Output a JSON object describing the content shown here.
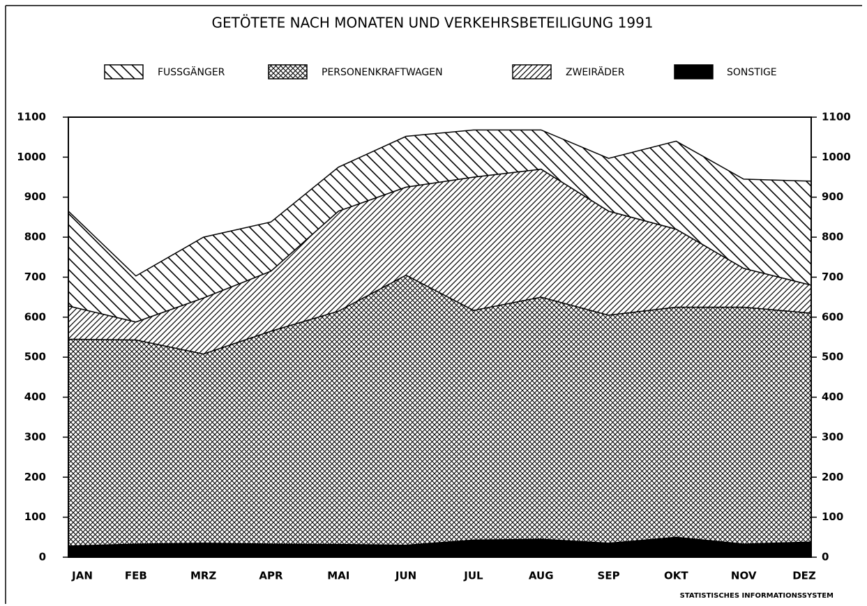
{
  "chart_data": {
    "type": "stacked-area",
    "title": "GETÖTETE NACH MONATEN UND VERKEHRSBETEILIGUNG 1991",
    "footer": "STATISTISCHES INFORMATIONSSYSTEM",
    "categories": [
      "JAN",
      "FEB",
      "MRZ",
      "APR",
      "MAI",
      "JUN",
      "JUL",
      "AUG",
      "SEP",
      "OKT",
      "NOV",
      "DEZ"
    ],
    "series": [
      {
        "name": "SONSTIGE",
        "color": "#000000",
        "values": [
          28,
          33,
          35,
          33,
          32,
          30,
          43,
          45,
          35,
          50,
          33,
          38
        ]
      },
      {
        "name": "PERSONENKRAFTWAGEN",
        "color": "#000000",
        "values": [
          517,
          510,
          473,
          532,
          583,
          675,
          574,
          605,
          570,
          575,
          592,
          572
        ]
      },
      {
        "name": "ZWEIRÄDER",
        "color": "#000000",
        "values": [
          83,
          45,
          140,
          150,
          250,
          220,
          333,
          320,
          260,
          195,
          97,
          70
        ]
      },
      {
        "name": "FUSSGÄNGER",
        "color": "#000000",
        "values": [
          237,
          115,
          152,
          123,
          110,
          127,
          118,
          98,
          132,
          220,
          223,
          260
        ]
      }
    ],
    "legend_order": [
      3,
      1,
      2,
      0
    ],
    "ylim": [
      0,
      1100
    ],
    "yticks": [
      0,
      100,
      200,
      300,
      400,
      500,
      600,
      700,
      800,
      900,
      1000,
      1100
    ]
  }
}
